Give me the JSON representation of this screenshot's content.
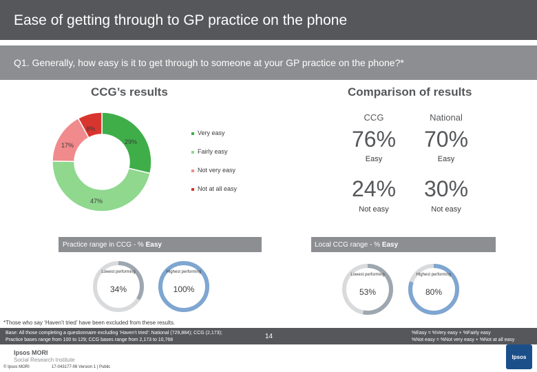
{
  "header": {
    "title": "Ease of getting through to GP practice on the phone",
    "question": "Q1. Generally, how easy is it to get through to someone at your GP practice on the phone?*"
  },
  "left_section": {
    "title": "CCG’s results"
  },
  "right_section": {
    "title": "Comparison of results"
  },
  "chart_data": [
    {
      "type": "pie",
      "categories": [
        "Very easy",
        "Fairly easy",
        "Not very easy",
        "Not at all easy"
      ],
      "values": [
        29,
        47,
        17,
        8
      ],
      "data_labels": [
        "29%",
        "47%",
        "17%",
        "8%"
      ],
      "colors": [
        "#3fae49",
        "#8fd88e",
        "#f08a8c",
        "#d9352f"
      ],
      "legend": "right"
    }
  ],
  "legend": {
    "very_easy": "Very easy",
    "fairly_easy": "Fairly easy",
    "not_very_easy": "Not very easy",
    "not_at_all_easy": "Not at all easy"
  },
  "comparison": {
    "col_ccg": "CCG",
    "col_national": "National",
    "easy_ccg": "76%",
    "easy_national": "70%",
    "easy_label_ccg": "Easy",
    "easy_label_national": "Easy",
    "noteasy_ccg": "24%",
    "noteasy_national": "30%",
    "noteasy_label_ccg": "Not easy",
    "noteasy_label_national": "Not easy"
  },
  "practice_range": {
    "label": "Practice range in CCG - % ",
    "label_bold": "Easy",
    "lowest_caption": "Lowest performing",
    "highest_caption": "Highest performing",
    "lowest_value": "34%",
    "highest_value": "100%",
    "lowest_fraction": 0.34,
    "highest_fraction": 1.0
  },
  "local_range": {
    "label": "Local CCG range - % ",
    "label_bold": "Easy",
    "lowest_caption": "Lowest performing",
    "highest_caption": "Highest performing",
    "lowest_value": "53%",
    "highest_value": "80%",
    "lowest_fraction": 0.53,
    "highest_fraction": 0.8
  },
  "footnote": "*Those who say ‘Haven’t tried’ have been excluded from these results.",
  "base": {
    "line1": "Base: All those completing a questionnaire excluding ‘Haven’t tried’: National (729,884); CCG (2,173);",
    "line2": "Practice bases range from 100 to 129; CCG bases range from 2,173 to 10,768",
    "def1": "%Easy = %Very easy + %Fairly easy",
    "def2": "%Not easy = %Not very easy + %Not at all easy"
  },
  "footer": {
    "brand_line1": "Ipsos MORI",
    "brand_line2": "Social Research Institute",
    "copyright": "© Ipsos MORI",
    "reference": "17-043177-06 Version 1 | Public",
    "page_number": "14",
    "logo_text": "Ipsos"
  },
  "colors": {
    "header_bg": "#55575a",
    "question_bg": "#8c8e91",
    "gauge_track": "#d8dadc",
    "gauge_low": "#9ea7b0",
    "gauge_high": "#7ea6d1"
  }
}
